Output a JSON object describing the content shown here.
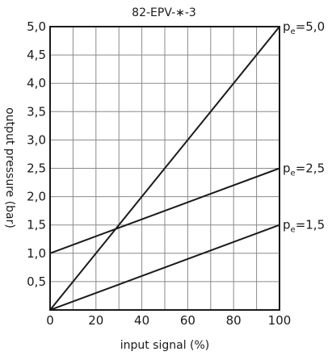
{
  "chart_data": {
    "type": "line",
    "title": "82-EPV-∗-3",
    "xlabel": "input signal (%)",
    "ylabel": "output pressure (bar)",
    "xlim": [
      0,
      100
    ],
    "ylim": [
      0,
      5
    ],
    "x_ticks": [
      "0",
      "20",
      "40",
      "60",
      "80",
      "100"
    ],
    "y_ticks": [
      "0,5",
      "1,0",
      "1,5",
      "2,0",
      "2,5",
      "3,0",
      "3,5",
      "4,0",
      "4,5",
      "5,0"
    ],
    "grid": true,
    "series": [
      {
        "label_main": "p",
        "label_sub": "e",
        "label_value": "=5,0",
        "x": [
          0,
          100
        ],
        "y": [
          0,
          5.0
        ]
      },
      {
        "label_main": "p",
        "label_sub": "e",
        "label_value": "=2,5",
        "x": [
          0,
          100
        ],
        "y": [
          1.0,
          2.5
        ]
      },
      {
        "label_main": "p",
        "label_sub": "e",
        "label_value": "=1,5",
        "x": [
          0,
          100
        ],
        "y": [
          0,
          1.5
        ]
      }
    ]
  }
}
